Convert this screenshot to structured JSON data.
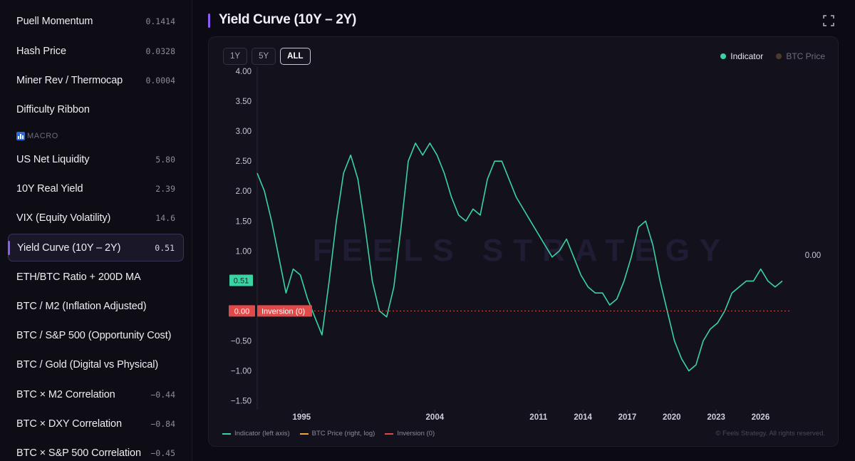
{
  "sidebar": {
    "items": [
      {
        "label": "Puell Momentum",
        "value": "0.1414"
      },
      {
        "label": "Hash Price",
        "value": "0.0328"
      },
      {
        "label": "Miner Rev / Thermocap",
        "value": "0.0004"
      },
      {
        "label": "Difficulty Ribbon",
        "value": ""
      },
      {
        "label": "US Net Liquidity",
        "value": "5.80"
      },
      {
        "label": "10Y Real Yield",
        "value": "2.39"
      },
      {
        "label": "VIX (Equity Volatility)",
        "value": "14.6"
      },
      {
        "label": "Yield Curve (10Y – 2Y)",
        "value": "0.51"
      },
      {
        "label": "ETH/BTC Ratio + 200D MA",
        "value": ""
      },
      {
        "label": "BTC / M2 (Inflation Adjusted)",
        "value": ""
      },
      {
        "label": "BTC / S&P 500 (Opportunity Cost)",
        "value": ""
      },
      {
        "label": "BTC / Gold (Digital vs Physical)",
        "value": ""
      },
      {
        "label": "BTC × M2 Correlation",
        "value": "−0.44"
      },
      {
        "label": "BTC × DXY Correlation",
        "value": "−0.84"
      },
      {
        "label": "BTC × S&P 500 Correlation",
        "value": "−0.45"
      }
    ],
    "section_macro": "MACRO"
  },
  "header": {
    "title": "Yield Curve (10Y – 2Y)"
  },
  "range_buttons": [
    "1Y",
    "5Y",
    "ALL"
  ],
  "legend_top": [
    {
      "label": "Indicator",
      "color": "#3ad3a3"
    },
    {
      "label": "BTC Price",
      "color": "#4a3a2e"
    }
  ],
  "legend_bottom": [
    {
      "label": "Indicator (left axis)",
      "color": "#3ad3a3"
    },
    {
      "label": "BTC Price (right, log)",
      "color": "#f0a43a"
    },
    {
      "label": "Inversion (0)",
      "color": "#e24a4a"
    }
  ],
  "watermark": "FEELS STRATEGY",
  "copyright": "© Feels Strategy. All rights reserved.",
  "chart_data": {
    "type": "line",
    "ylim": [
      -1.6,
      4.0
    ],
    "y_ticks": [
      "4.00",
      "3.50",
      "3.00",
      "2.50",
      "2.00",
      "1.50",
      "1.00",
      "0.50",
      "0.00",
      "−0.50",
      "−1.00",
      "−1.50"
    ],
    "x_ticks": [
      "1995",
      "2004",
      "2011",
      "2014",
      "2017",
      "2020",
      "2023",
      "2026"
    ],
    "current_value_label": "0.51",
    "inversion_value_label": "0.00",
    "inversion_label": "Inversion (0)",
    "right_axis_label": "0.00",
    "series": [
      {
        "values": [
          2.3,
          2.0,
          1.5,
          0.9,
          0.3,
          0.7,
          0.6,
          0.2,
          -0.1,
          -0.4,
          0.5,
          1.5,
          2.3,
          2.6,
          2.2,
          1.4,
          0.5,
          0.0,
          -0.1,
          0.4,
          1.4,
          2.5,
          2.8,
          2.6,
          2.8,
          2.6,
          2.3,
          1.9,
          1.6,
          1.5,
          1.7,
          1.6,
          2.2,
          2.5,
          2.5,
          2.2,
          1.9,
          1.7,
          1.5,
          1.3,
          1.1,
          0.9,
          1.0,
          1.2,
          0.9,
          0.6,
          0.4,
          0.3,
          0.3,
          0.1,
          0.2,
          0.5,
          0.9,
          1.4,
          1.5,
          1.1,
          0.5,
          0.0,
          -0.5,
          -0.8,
          -1.0,
          -0.9,
          -0.5,
          -0.3,
          -0.2,
          0.0,
          0.3,
          0.4,
          0.5,
          0.5,
          0.7,
          0.5,
          0.4,
          0.5
        ]
      }
    ]
  }
}
